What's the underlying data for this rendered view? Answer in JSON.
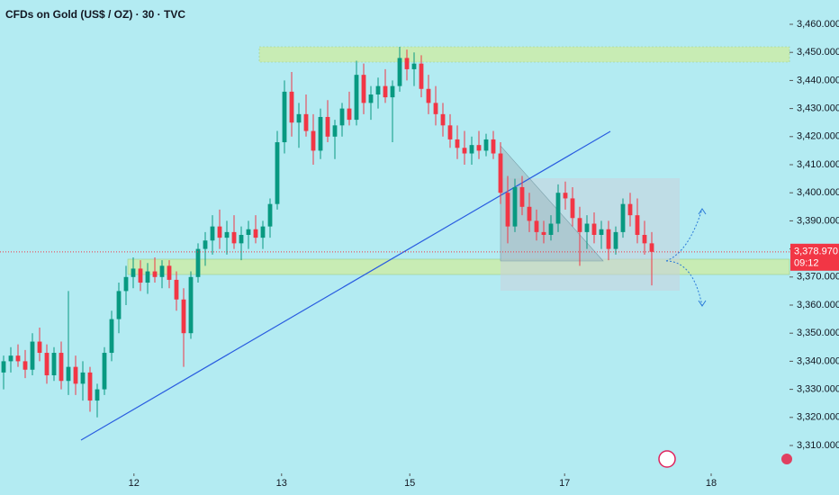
{
  "chart_data": {
    "type": "candlestick",
    "title": "CFDs on Gold (US$ / OZ) · 30 · TVC",
    "up_color": "#089981",
    "down_color": "#f23645",
    "candles": [
      [
        3336,
        3342,
        3330,
        3340
      ],
      [
        3340,
        3345,
        3336,
        3342
      ],
      [
        3342,
        3346,
        3338,
        3340
      ],
      [
        3340,
        3344,
        3334,
        3337
      ],
      [
        3337,
        3350,
        3335,
        3347
      ],
      [
        3347,
        3352,
        3340,
        3343
      ],
      [
        3343,
        3346,
        3332,
        3335
      ],
      [
        3335,
        3345,
        3333,
        3343
      ],
      [
        3343,
        3347,
        3330,
        3333
      ],
      [
        3333,
        3365,
        3328,
        3338
      ],
      [
        3338,
        3342,
        3328,
        3332
      ],
      [
        3332,
        3340,
        3326,
        3336
      ],
      [
        3336,
        3338,
        3322,
        3326
      ],
      [
        3326,
        3332,
        3320,
        3330
      ],
      [
        3330,
        3345,
        3328,
        3343
      ],
      [
        3343,
        3358,
        3340,
        3355
      ],
      [
        3355,
        3368,
        3350,
        3365
      ],
      [
        3365,
        3374,
        3360,
        3370
      ],
      [
        3370,
        3377,
        3366,
        3373
      ],
      [
        3373,
        3376,
        3365,
        3368
      ],
      [
        3368,
        3375,
        3364,
        3372
      ],
      [
        3372,
        3377,
        3368,
        3370
      ],
      [
        3370,
        3376,
        3366,
        3374
      ],
      [
        3374,
        3376,
        3366,
        3369
      ],
      [
        3369,
        3372,
        3358,
        3362
      ],
      [
        3362,
        3366,
        3338,
        3350
      ],
      [
        3350,
        3372,
        3348,
        3370
      ],
      [
        3370,
        3382,
        3368,
        3380
      ],
      [
        3380,
        3386,
        3374,
        3383
      ],
      [
        3383,
        3392,
        3378,
        3388
      ],
      [
        3388,
        3394,
        3380,
        3384
      ],
      [
        3384,
        3390,
        3378,
        3386
      ],
      [
        3386,
        3392,
        3380,
        3382
      ],
      [
        3382,
        3388,
        3376,
        3385
      ],
      [
        3385,
        3390,
        3380,
        3387
      ],
      [
        3387,
        3392,
        3382,
        3384
      ],
      [
        3384,
        3390,
        3380,
        3388
      ],
      [
        3388,
        3398,
        3384,
        3396
      ],
      [
        3396,
        3422,
        3394,
        3418
      ],
      [
        3418,
        3440,
        3414,
        3436
      ],
      [
        3436,
        3443,
        3420,
        3425
      ],
      [
        3425,
        3432,
        3416,
        3428
      ],
      [
        3428,
        3435,
        3420,
        3422
      ],
      [
        3422,
        3428,
        3410,
        3415
      ],
      [
        3415,
        3430,
        3412,
        3427
      ],
      [
        3427,
        3433,
        3418,
        3420
      ],
      [
        3420,
        3426,
        3412,
        3424
      ],
      [
        3424,
        3432,
        3420,
        3430
      ],
      [
        3430,
        3436,
        3424,
        3426
      ],
      [
        3426,
        3447,
        3424,
        3442
      ],
      [
        3442,
        3446,
        3428,
        3432
      ],
      [
        3432,
        3438,
        3426,
        3435
      ],
      [
        3435,
        3441,
        3430,
        3438
      ],
      [
        3438,
        3444,
        3432,
        3434
      ],
      [
        3434,
        3440,
        3418,
        3438
      ],
      [
        3438,
        3452,
        3436,
        3448
      ],
      [
        3448,
        3451,
        3440,
        3444
      ],
      [
        3444,
        3450,
        3438,
        3446
      ],
      [
        3446,
        3449,
        3434,
        3437
      ],
      [
        3437,
        3442,
        3428,
        3432
      ],
      [
        3432,
        3438,
        3424,
        3428
      ],
      [
        3428,
        3432,
        3420,
        3424
      ],
      [
        3424,
        3428,
        3416,
        3419
      ],
      [
        3419,
        3424,
        3412,
        3416
      ],
      [
        3416,
        3422,
        3410,
        3414
      ],
      [
        3414,
        3420,
        3410,
        3417
      ],
      [
        3417,
        3422,
        3412,
        3415
      ],
      [
        3415,
        3421,
        3413,
        3419
      ],
      [
        3419,
        3422,
        3412,
        3414
      ],
      [
        3414,
        3418,
        3396,
        3400
      ],
      [
        3400,
        3406,
        3382,
        3388
      ],
      [
        3388,
        3405,
        3386,
        3402
      ],
      [
        3402,
        3406,
        3392,
        3395
      ],
      [
        3395,
        3400,
        3386,
        3390
      ],
      [
        3390,
        3394,
        3383,
        3386
      ],
      [
        3386,
        3390,
        3382,
        3385
      ],
      [
        3385,
        3392,
        3383,
        3389
      ],
      [
        3389,
        3403,
        3386,
        3400
      ],
      [
        3400,
        3404,
        3394,
        3398
      ],
      [
        3398,
        3402,
        3388,
        3391
      ],
      [
        3391,
        3395,
        3374,
        3386
      ],
      [
        3386,
        3392,
        3380,
        3389
      ],
      [
        3389,
        3393,
        3382,
        3385
      ],
      [
        3385,
        3390,
        3380,
        3387
      ],
      [
        3387,
        3390,
        3376,
        3380
      ],
      [
        3380,
        3388,
        3378,
        3386
      ],
      [
        3386,
        3398,
        3384,
        3396
      ],
      [
        3396,
        3400,
        3388,
        3392
      ],
      [
        3392,
        3398,
        3382,
        3385
      ],
      [
        3385,
        3390,
        3378,
        3382
      ],
      [
        3382,
        3386,
        3367,
        3378.97
      ]
    ],
    "xlim": [
      -0.5,
      108.25
    ],
    "xticks": [
      {
        "value": 18.1,
        "label": "12"
      },
      {
        "value": 38.6,
        "label": "13"
      },
      {
        "value": 56.4,
        "label": "15"
      },
      {
        "value": 77.9,
        "label": "17"
      },
      {
        "value": 98.25,
        "label": "18"
      }
    ],
    "ylim": [
      3310,
      3460
    ],
    "yticks": [
      {
        "value": 3310,
        "label": "3,310.000"
      },
      {
        "value": 3320,
        "label": "3,320.000"
      },
      {
        "value": 3330,
        "label": "3,330.000"
      },
      {
        "value": 3340,
        "label": "3,340.000"
      },
      {
        "value": 3350,
        "label": "3,350.000"
      },
      {
        "value": 3360,
        "label": "3,360.000"
      },
      {
        "value": 3370,
        "label": "3,370.000"
      },
      {
        "value": 3380,
        "label": "3,380.000"
      },
      {
        "value": 3390,
        "label": "3,390.000"
      },
      {
        "value": 3400,
        "label": "3,400.000"
      },
      {
        "value": 3410,
        "label": "3,410.000"
      },
      {
        "value": 3420,
        "label": "3,420.000"
      },
      {
        "value": 3430,
        "label": "3,430.000"
      },
      {
        "value": 3440,
        "label": "3,440.000"
      },
      {
        "value": 3450,
        "label": "3,450.000"
      },
      {
        "value": 3460,
        "label": "3,460.000"
      }
    ],
    "last_price_label": "3,378.970",
    "countdown": "09:12"
  }
}
